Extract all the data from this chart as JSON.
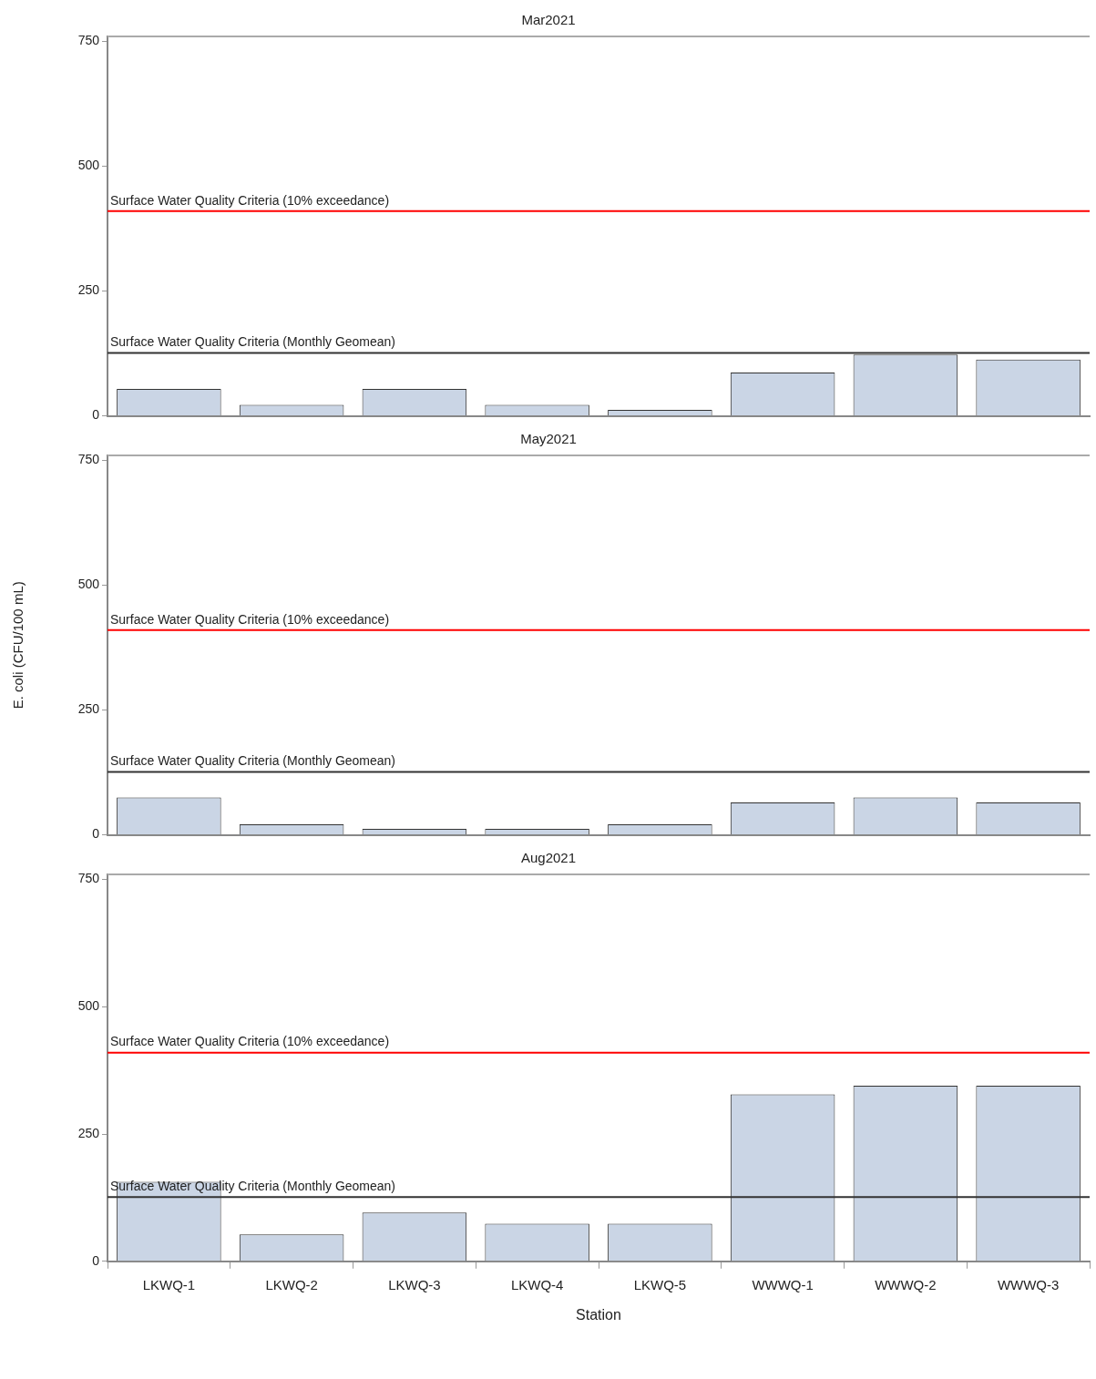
{
  "chart_data": [
    {
      "type": "bar",
      "title": "Mar2021",
      "categories": [
        null,
        null,
        null,
        null,
        null,
        null,
        null,
        null
      ],
      "values": [
        54,
        22,
        54,
        22,
        12,
        87,
        123,
        113
      ],
      "color": "#cad5e5",
      "ylim": [
        0,
        760
      ],
      "yticks": [
        0,
        250,
        500,
        750
      ],
      "tick_labels": "y",
      "ref_lines": [
        {
          "axis": "y",
          "value": 410,
          "label": "Surface Water Quality Criteria (10% exceedance)",
          "color": "#ff0000"
        },
        {
          "axis": "y",
          "value": 126,
          "label": "Surface Water Quality Criteria (Monthly Geomean)",
          "color": "#333333"
        }
      ]
    },
    {
      "type": "bar",
      "title": "May2021",
      "ylabel": "E. coli (CFU/100 mL)",
      "categories": [
        null,
        null,
        null,
        null,
        null,
        null,
        null,
        null
      ],
      "values": [
        75,
        21,
        12,
        12,
        21,
        65,
        75,
        65
      ],
      "color": "#cad5e5",
      "ylim": [
        0,
        760
      ],
      "yticks": [
        0,
        250,
        500,
        750
      ],
      "tick_labels": "y",
      "ref_lines": [
        {
          "axis": "y",
          "value": 410,
          "label": "Surface Water Quality Criteria (10% exceedance)",
          "color": "#ff0000"
        },
        {
          "axis": "y",
          "value": 126,
          "label": "Surface Water Quality Criteria (Monthly Geomean)",
          "color": "#333333"
        }
      ]
    },
    {
      "type": "bar",
      "title": "Aug2021",
      "xlabel": "Station",
      "categories": [
        "LKWQ-1",
        "LKWQ-2",
        "LKWQ-3",
        "LKWQ-4",
        "LKWQ-5",
        "WWWQ-1",
        "WWWQ-2",
        "WWWQ-3"
      ],
      "values": [
        156,
        53,
        96,
        74,
        74,
        328,
        345,
        345
      ],
      "color": "#cad5e5",
      "ylim": [
        0,
        760
      ],
      "yticks": [
        0,
        250,
        500,
        750
      ],
      "ref_lines": [
        {
          "axis": "y",
          "value": 410,
          "label": "Surface Water Quality Criteria (10% exceedance)",
          "color": "#ff0000"
        },
        {
          "axis": "y",
          "value": 126,
          "label": "Surface Water Quality Criteria (Monthly Geomean)",
          "color": "#333333"
        }
      ]
    }
  ]
}
